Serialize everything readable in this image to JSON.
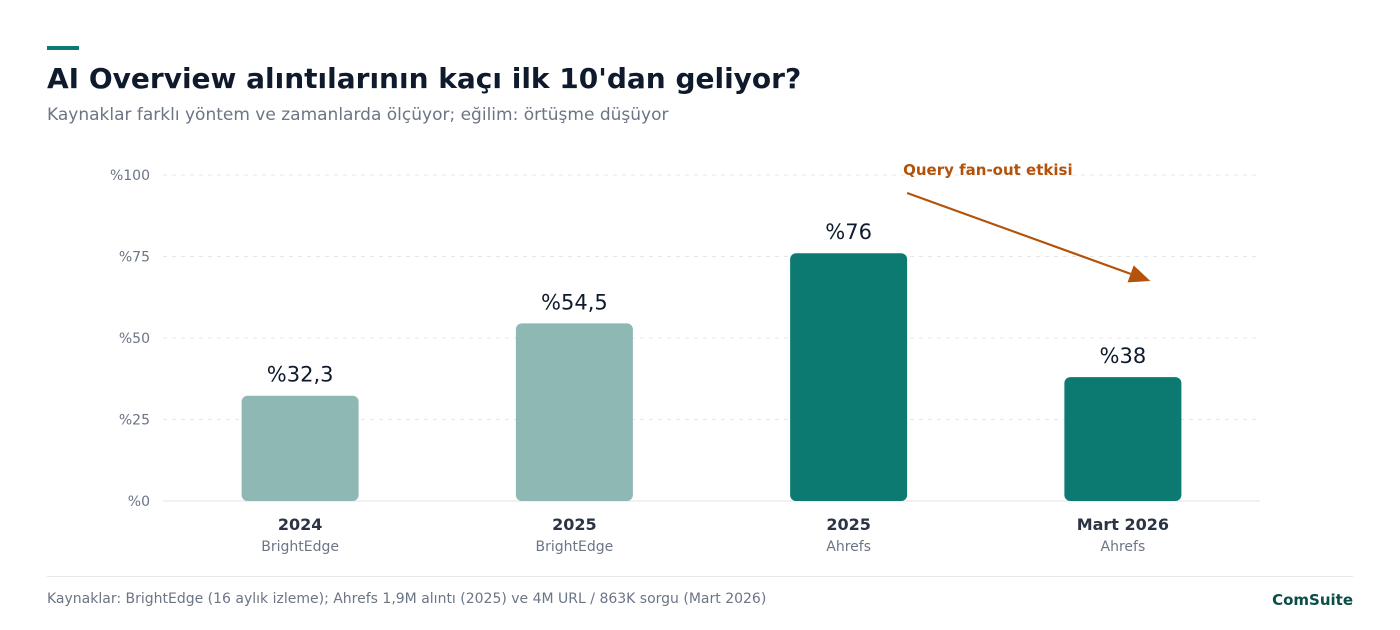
{
  "header": {
    "title": "AI Overview alıntılarının kaçı ilk 10'dan geliyor?",
    "subtitle": "Kaynaklar farklı yöntem ve zamanlarda ölçüyor; eğilim: örtüşme düşüyor"
  },
  "footer": {
    "source": "Kaynaklar: BrightEdge (16 aylık izleme); Ahrefs 1,9M alıntı (2025) ve 4M URL / 863K sorgu (Mart 2026)",
    "brand": "ComSuite"
  },
  "colors": {
    "accent": "#0d7a72",
    "bar_light": "#8eb8b4",
    "bar_dark": "#0d7a72",
    "annotation": "#b3520a"
  },
  "chart_data": {
    "type": "bar",
    "title": "AI Overview alıntılarının kaçı ilk 10'dan geliyor?",
    "subtitle": "Kaynaklar farklı yöntem ve zamanlarda ölçüyor; eğilim: örtüşme düşüyor",
    "categories": [
      "2024",
      "2025",
      "2025",
      "Mart 2026"
    ],
    "sources": [
      "BrightEdge",
      "BrightEdge",
      "Ahrefs",
      "Ahrefs"
    ],
    "values": [
      32.3,
      54.5,
      76,
      38
    ],
    "value_labels": [
      "%32,3",
      "%54,5",
      "%76",
      "%38"
    ],
    "bar_colors": [
      "#8eb8b4",
      "#8eb8b4",
      "#0d7a72",
      "#0d7a72"
    ],
    "ylim": [
      0,
      100
    ],
    "yticks": [
      0,
      25,
      50,
      75,
      100
    ],
    "ytick_labels": [
      "%0",
      "%25",
      "%50",
      "%75",
      "%100"
    ],
    "grid": true,
    "annotation": {
      "text": "Query fan-out etkisi",
      "from_category_index": 2,
      "to_category_index": 3
    }
  }
}
